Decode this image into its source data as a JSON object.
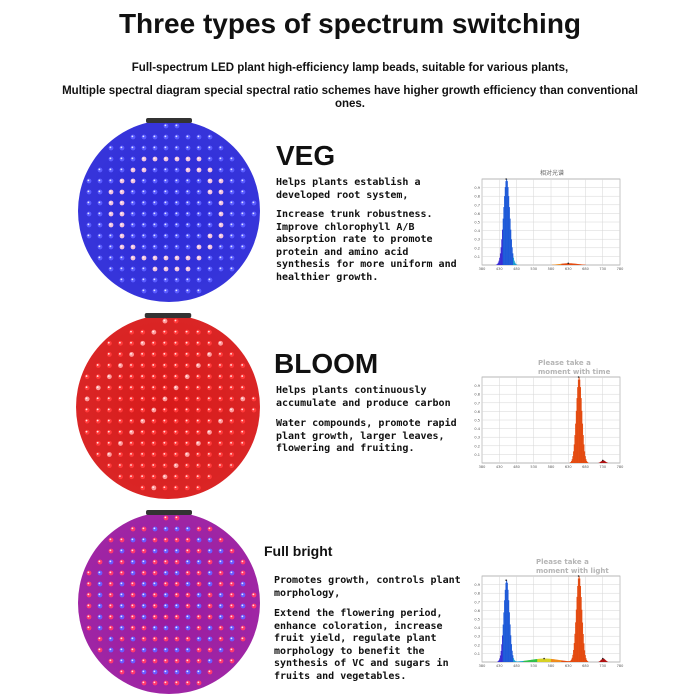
{
  "header": {
    "title": "Three types of spectrum switching",
    "subtitle_1": "Full-spectrum LED plant high-efficiency lamp beads, suitable for various plants,",
    "subtitle_2": "Multiple spectral diagram special spectral ratio schemes have higher growth efficiency than conventional ones."
  },
  "modes": [
    {
      "name": "VEG",
      "lamp_colors": {
        "base": "#2c2ad8",
        "led": "#5a5cff",
        "accent": "#f2c4e0"
      },
      "paragraph_1": "Helps plants establish a developed root system,",
      "paragraph_2": "Increase trunk robustness. Improve chlorophyll A/B absorption rate to promote protein and amino acid synthesis for more uniform and healthier growth.",
      "chart_caption": "相对光谱",
      "chart_note": ""
    },
    {
      "name": "BLOOM",
      "lamp_colors": {
        "base": "#d81a1a",
        "led": "#ff3a3a",
        "accent": "#ff9b9b"
      },
      "paragraph_1": "Helps plants continuously accumulate and produce carbon",
      "paragraph_2": "Water compounds, promote rapid plant growth, larger leaves, flowering and fruiting.",
      "chart_caption": "",
      "chart_note": "Please take a moment with time"
    },
    {
      "name": "Full bright",
      "lamp_colors": {
        "base": "#9a1aa0",
        "led": "#ff3a6e",
        "accent": "#6a5cff"
      },
      "paragraph_1": "Promotes growth, controls plant morphology,",
      "paragraph_2": "Extend the flowering period, enhance coloration, increase fruit yield, regulate plant morphology to benefit the synthesis of VC and sugars in fruits and vegetables.",
      "chart_caption": "",
      "chart_note": "Please take a moment with light"
    }
  ],
  "chart_data": [
    {
      "type": "area",
      "x_ticks": [
        "380",
        "430",
        "480",
        "530",
        "580",
        "630",
        "680",
        "730",
        "780"
      ],
      "y_ticks": [
        "0.1",
        "0.2",
        "0.3",
        "0.4",
        "0.5",
        "0.6",
        "0.7",
        "0.8",
        "0.9"
      ],
      "xlim": [
        380,
        780
      ],
      "ylim": [
        0,
        1
      ],
      "peaks": [
        {
          "center": 450,
          "height": 1.0,
          "width": 9
        },
        {
          "center": 630,
          "height": 0.02,
          "width": 25
        }
      ]
    },
    {
      "type": "area",
      "x_ticks": [
        "380",
        "430",
        "480",
        "530",
        "580",
        "630",
        "680",
        "730",
        "780"
      ],
      "y_ticks": [
        "0.1",
        "0.2",
        "0.3",
        "0.4",
        "0.5",
        "0.6",
        "0.7",
        "0.8",
        "0.9"
      ],
      "xlim": [
        380,
        780
      ],
      "ylim": [
        0,
        1
      ],
      "peaks": [
        {
          "center": 660,
          "height": 1.0,
          "width": 8
        },
        {
          "center": 730,
          "height": 0.03,
          "width": 6
        }
      ]
    },
    {
      "type": "area",
      "x_ticks": [
        "380",
        "430",
        "480",
        "530",
        "580",
        "630",
        "680",
        "730",
        "780"
      ],
      "y_ticks": [
        "0.1",
        "0.2",
        "0.3",
        "0.4",
        "0.5",
        "0.6",
        "0.7",
        "0.8",
        "0.9"
      ],
      "xlim": [
        380,
        780
      ],
      "ylim": [
        0,
        1
      ],
      "peaks": [
        {
          "center": 450,
          "height": 0.95,
          "width": 8
        },
        {
          "center": 660,
          "height": 1.0,
          "width": 8
        },
        {
          "center": 560,
          "height": 0.04,
          "width": 40
        },
        {
          "center": 730,
          "height": 0.04,
          "width": 6
        }
      ]
    }
  ]
}
